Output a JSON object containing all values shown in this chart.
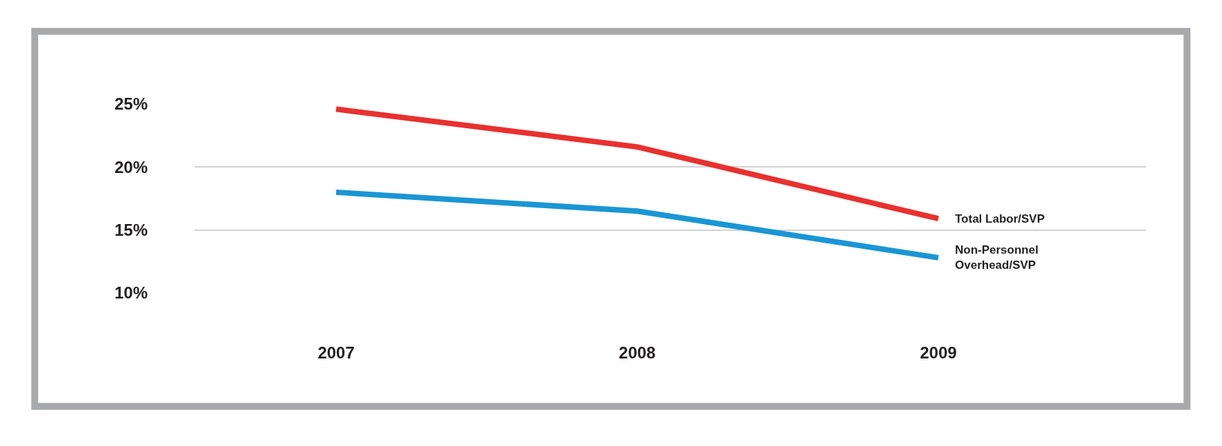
{
  "chart_data": {
    "type": "line",
    "categories": [
      "2007",
      "2008",
      "2009"
    ],
    "series": [
      {
        "name": "Total Labor/SVP",
        "color": "#e8312f",
        "values": [
          24.6,
          21.6,
          15.9
        ]
      },
      {
        "name": "Non-Personnel Overhead/SVP",
        "color": "#1a96d4",
        "values": [
          18.0,
          16.5,
          12.8
        ]
      }
    ],
    "ylim": [
      10,
      25
    ],
    "yticks": [
      {
        "value": 10,
        "label": "10%"
      },
      {
        "value": 15,
        "label": "15%"
      },
      {
        "value": 20,
        "label": "20%"
      },
      {
        "value": 25,
        "label": "25%"
      }
    ],
    "grid": "y",
    "legend": false,
    "marker": "none",
    "line_style": "solid"
  }
}
